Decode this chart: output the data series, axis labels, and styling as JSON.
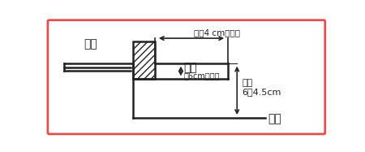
{
  "bg_color": "#ffffff",
  "border_color": "#e05050",
  "fig_width": 4.5,
  "fig_height": 1.87,
  "dpi": 100,
  "label_corridor": "廊下",
  "label_width": "幅（4 cm以上）",
  "label_sei": "せい",
  "label_sei_sub": "（6cm以上）",
  "label_dangsa": "段差\n6〜4.5cm",
  "label_doma": "土間",
  "line_color": "#222222",
  "text_color": "#222222",
  "border_color2": "#cc3333"
}
